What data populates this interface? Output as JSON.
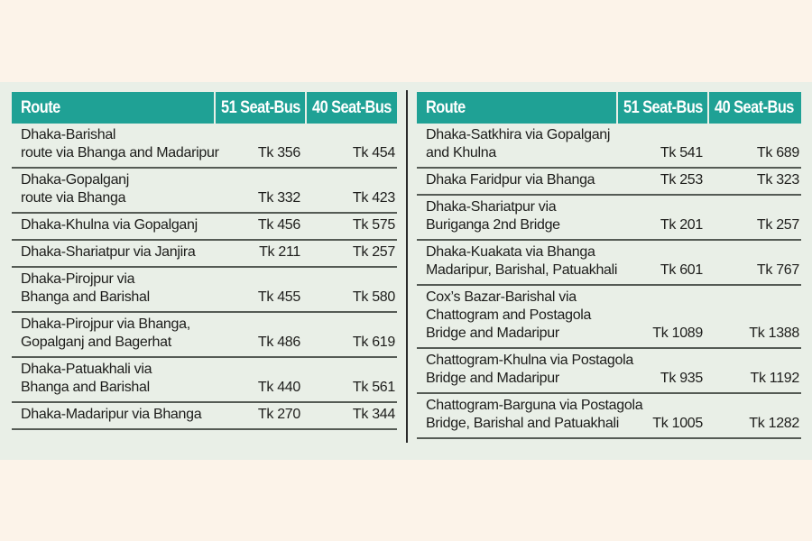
{
  "columns": {
    "route": "Route",
    "seat51": "51 Seat-Bus",
    "seat40": "40 Seat-Bus"
  },
  "colors": {
    "header_bg": "#1fa195",
    "header_text": "#ffffff",
    "panel_bg": "#e9efe7",
    "page_bg": "#fcf3e9",
    "rule": "#555b55"
  },
  "left_table": {
    "rows": [
      {
        "route_lines": [
          "Dhaka-Barishal",
          "route via Bhanga and Madaripur"
        ],
        "seat51": "Tk 356",
        "seat40": "Tk 454"
      },
      {
        "route_lines": [
          "Dhaka-Gopalganj",
          "route via Bhanga"
        ],
        "seat51": "Tk 332",
        "seat40": "Tk 423"
      },
      {
        "route_lines": [
          "Dhaka-Khulna via Gopalganj"
        ],
        "seat51": "Tk 456",
        "seat40": "Tk 575"
      },
      {
        "route_lines": [
          "Dhaka-Shariatpur via Janjira"
        ],
        "seat51": "Tk 211",
        "seat40": "Tk 257"
      },
      {
        "route_lines": [
          "Dhaka-Pirojpur via",
          "Bhanga and Barishal"
        ],
        "seat51": "Tk 455",
        "seat40": "Tk 580"
      },
      {
        "route_lines": [
          "Dhaka-Pirojpur via Bhanga,",
          "Gopalganj and Bagerhat"
        ],
        "seat51": "Tk 486",
        "seat40": "Tk 619"
      },
      {
        "route_lines": [
          "Dhaka-Patuakhali via",
          "Bhanga and Barishal"
        ],
        "seat51": "Tk 440",
        "seat40": "Tk 561"
      },
      {
        "route_lines": [
          "Dhaka-Madaripur via Bhanga"
        ],
        "seat51": "Tk 270",
        "seat40": "Tk 344"
      }
    ]
  },
  "right_table": {
    "rows": [
      {
        "route_lines": [
          "Dhaka-Satkhira via Gopalganj",
          "and Khulna"
        ],
        "seat51": "Tk 541",
        "seat40": "Tk 689"
      },
      {
        "route_lines": [
          "Dhaka Faridpur via Bhanga"
        ],
        "seat51": "Tk 253",
        "seat40": "Tk 323"
      },
      {
        "route_lines": [
          "Dhaka-Shariatpur via",
          "Buriganga 2nd Bridge"
        ],
        "seat51": "Tk 201",
        "seat40": "Tk 257"
      },
      {
        "route_lines": [
          "Dhaka-Kuakata via Bhanga",
          "Madaripur, Barishal, Patuakhali"
        ],
        "seat51": "Tk 601",
        "seat40": "Tk 767"
      },
      {
        "route_lines": [
          "Cox’s Bazar-Barishal via",
          "Chattogram and Postagola",
          "Bridge and Madaripur"
        ],
        "seat51": "Tk 1089",
        "seat40": "Tk 1388"
      },
      {
        "route_lines": [
          "Chattogram-Khulna via Postagola",
          "Bridge and Madaripur"
        ],
        "seat51": "Tk 935",
        "seat40": "Tk 1192"
      },
      {
        "route_lines": [
          "Chattogram-Barguna via Postagola",
          "Bridge, Barishal and Patuakhali"
        ],
        "seat51": "Tk 1005",
        "seat40": "Tk 1282"
      }
    ]
  }
}
